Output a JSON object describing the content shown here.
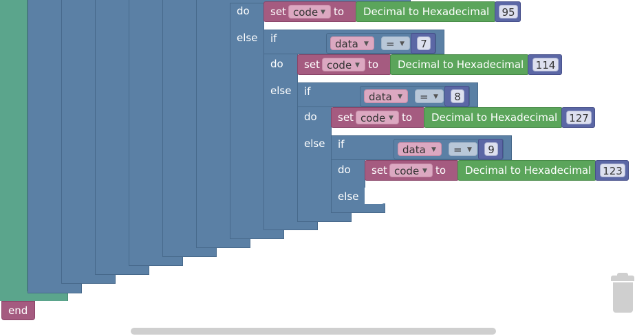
{
  "keywords": {
    "do": "do",
    "else": "else",
    "if": "if",
    "set": "set",
    "to": "to",
    "end": "end"
  },
  "blocks": {
    "variable": "code",
    "compare_variable": "data",
    "compare_operator": "=",
    "converter": "Decimal to Hexadecimal"
  },
  "conditions": [
    {
      "value": "7"
    },
    {
      "value": "8"
    },
    {
      "value": "9"
    }
  ],
  "assignments": [
    {
      "value": "95"
    },
    {
      "value": "114"
    },
    {
      "value": "127"
    },
    {
      "value": "123"
    }
  ],
  "colors": {
    "logic": "#5b80a5",
    "procedure": "#5ba58c",
    "variable": "#a55b80",
    "text": "#5ba55b",
    "number": "#5b67a5"
  }
}
